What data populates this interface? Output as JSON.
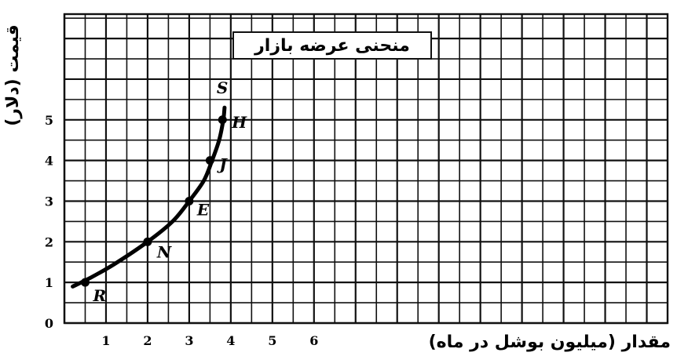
{
  "chart_data": {
    "type": "line",
    "title": "منحنی عرضه بازار",
    "xlabel": "مقدار (میلیون بوشل در ماه)",
    "ylabel": "قیمت (دلار)",
    "x_ticks": [
      "1",
      "2",
      "3",
      "4",
      "5",
      "6"
    ],
    "y_ticks": [
      "0",
      "1",
      "2",
      "3",
      "4",
      "5"
    ],
    "xlim": [
      0,
      14.5
    ],
    "ylim": [
      0,
      7.6
    ],
    "grid": true,
    "series": [
      {
        "name": "",
        "curve": [
          {
            "x": 0.2,
            "y": 0.9
          },
          {
            "x": 0.6,
            "y": 1.1
          },
          {
            "x": 1.2,
            "y": 1.45
          },
          {
            "x": 2.0,
            "y": 2.0
          },
          {
            "x": 2.6,
            "y": 2.5
          },
          {
            "x": 3.0,
            "y": 3.0
          },
          {
            "x": 3.35,
            "y": 3.5
          },
          {
            "x": 3.55,
            "y": 4.0
          },
          {
            "x": 3.72,
            "y": 4.5
          },
          {
            "x": 3.82,
            "y": 5.0
          },
          {
            "x": 3.85,
            "y": 5.3
          }
        ],
        "points": [
          {
            "label": "R",
            "x": 0.5,
            "y": 1.0
          },
          {
            "label": "N",
            "x": 2.0,
            "y": 2.0
          },
          {
            "label": "E",
            "x": 3.0,
            "y": 3.0
          },
          {
            "label": "J",
            "x": 3.5,
            "y": 4.0
          },
          {
            "label": "H",
            "x": 3.8,
            "y": 5.0
          },
          {
            "label": "S",
            "x": 3.85,
            "y": 5.3
          }
        ]
      }
    ]
  }
}
